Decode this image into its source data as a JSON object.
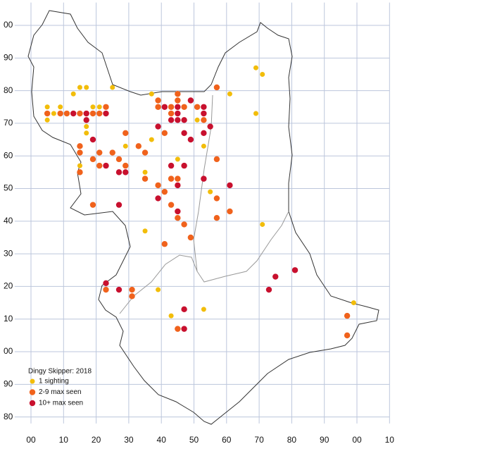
{
  "chart_data": {
    "type": "scatter",
    "title": "Dingy Skipper:  2018",
    "legend": "lower left",
    "grid": true,
    "xlim": [
      -5,
      110
    ],
    "ylim": [
      -22,
      107
    ],
    "xticks": [
      {
        "value": 0,
        "label": "00"
      },
      10,
      20,
      30,
      40,
      50,
      60,
      70,
      80,
      90,
      {
        "value": 100,
        "label": "00"
      },
      {
        "value": 110,
        "label": "10"
      }
    ],
    "yticks": [
      {
        "value": 100,
        "label": "00"
      },
      90,
      80,
      70,
      60,
      50,
      40,
      30,
      20,
      10,
      {
        "value": 0,
        "label": "00"
      },
      {
        "value": -10,
        "label": "90"
      },
      {
        "value": -20,
        "label": "80"
      }
    ],
    "series": [
      {
        "name": "1 sighting",
        "color": "#f2bd0a",
        "x": [
          5,
          5,
          7,
          9,
          13,
          15,
          17,
          17,
          17,
          19,
          21,
          25,
          37,
          37,
          29,
          15,
          35,
          35,
          45,
          51,
          53,
          55,
          61,
          69,
          71,
          69,
          71,
          39,
          43,
          53,
          99
        ],
        "values": [
          75,
          71,
          73,
          75,
          79,
          81,
          81,
          69,
          67,
          75,
          75,
          81,
          79,
          65,
          63,
          57,
          55,
          37,
          59,
          71,
          63,
          49,
          79,
          87,
          85,
          73,
          39,
          19,
          11,
          13,
          15
        ]
      },
      {
        "name": "2-9 max seen",
        "color": "#f0621c",
        "x": [
          5,
          9,
          11,
          15,
          19,
          21,
          23,
          15,
          15,
          15,
          19,
          21,
          21,
          25,
          27,
          29,
          29,
          33,
          35,
          35,
          39,
          39,
          41,
          43,
          43,
          45,
          45,
          47,
          51,
          53,
          57,
          39,
          41,
          43,
          45,
          43,
          45,
          47,
          49,
          41,
          57,
          57,
          57,
          61,
          19,
          23,
          31,
          31,
          45,
          97,
          97
        ],
        "values": [
          73,
          73,
          73,
          73,
          73,
          73,
          75,
          63,
          61,
          55,
          59,
          61,
          57,
          61,
          59,
          67,
          57,
          63,
          61,
          53,
          77,
          75,
          67,
          75,
          73,
          79,
          77,
          75,
          75,
          71,
          81,
          51,
          49,
          53,
          53,
          45,
          41,
          39,
          35,
          33,
          59,
          47,
          41,
          43,
          45,
          19,
          19,
          17,
          7,
          11,
          5
        ]
      },
      {
        "name": "10+ max seen",
        "color": "#c8102e",
        "x": [
          13,
          17,
          17,
          23,
          19,
          23,
          27,
          29,
          27,
          39,
          41,
          43,
          45,
          45,
          45,
          47,
          49,
          53,
          53,
          47,
          49,
          53,
          55,
          43,
          47,
          45,
          53,
          61,
          39,
          45,
          23,
          27,
          73,
          75,
          81,
          47,
          47
        ],
        "values": [
          73,
          73,
          71,
          73,
          65,
          57,
          55,
          55,
          45,
          69,
          75,
          71,
          75,
          73,
          71,
          71,
          77,
          75,
          73,
          67,
          65,
          67,
          69,
          57,
          57,
          51,
          53,
          51,
          47,
          43,
          21,
          19,
          19,
          23,
          25,
          13,
          7
        ]
      }
    ]
  }
}
